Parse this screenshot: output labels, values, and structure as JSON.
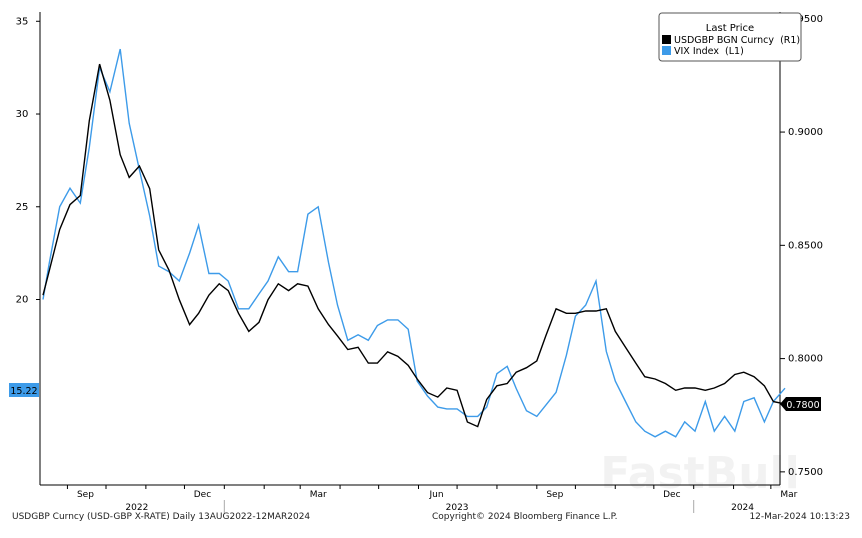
{
  "chart_data": {
    "type": "line",
    "legend": {
      "title": "Last Price",
      "placement": "top-right"
    },
    "x": [
      "2022-08-13",
      "2022-08-18",
      "2022-08-26",
      "2022-09-03",
      "2022-09-11",
      "2022-09-18",
      "2022-09-26",
      "2022-10-04",
      "2022-10-12",
      "2022-10-19",
      "2022-10-27",
      "2022-11-04",
      "2022-11-11",
      "2022-11-19",
      "2022-11-27",
      "2022-12-05",
      "2022-12-12",
      "2022-12-20",
      "2022-12-28",
      "2023-01-04",
      "2023-01-12",
      "2023-01-20",
      "2023-01-28",
      "2023-02-04",
      "2023-02-12",
      "2023-02-20",
      "2023-02-27",
      "2023-03-07",
      "2023-03-15",
      "2023-03-23",
      "2023-03-30",
      "2023-04-07",
      "2023-04-15",
      "2023-04-23",
      "2023-04-30",
      "2023-05-08",
      "2023-05-16",
      "2023-05-24",
      "2023-05-31",
      "2023-06-08",
      "2023-06-16",
      "2023-06-23",
      "2023-07-01",
      "2023-07-09",
      "2023-07-17",
      "2023-07-24",
      "2023-08-01",
      "2023-08-09",
      "2023-08-16",
      "2023-08-24",
      "2023-09-01",
      "2023-09-08",
      "2023-09-16",
      "2023-09-24",
      "2023-10-01",
      "2023-10-09",
      "2023-10-17",
      "2023-10-25",
      "2023-11-01",
      "2023-11-09",
      "2023-11-17",
      "2023-11-24",
      "2023-12-02",
      "2023-12-10",
      "2023-12-18",
      "2023-12-25",
      "2024-01-02",
      "2024-01-10",
      "2024-01-17",
      "2024-01-25",
      "2024-02-02",
      "2024-02-09",
      "2024-02-17",
      "2024-02-25",
      "2024-03-03",
      "2024-03-12"
    ],
    "series": [
      {
        "name": "USDGBP BGN Curncy  (R1)",
        "axis": "right",
        "color": "#000000",
        "last_value_label": "0.7800",
        "values": [
          0.828,
          0.839,
          0.857,
          0.868,
          0.872,
          0.905,
          0.93,
          0.914,
          0.89,
          0.88,
          0.885,
          0.875,
          0.848,
          0.839,
          0.826,
          0.815,
          0.82,
          0.828,
          0.833,
          0.83,
          0.82,
          0.812,
          0.816,
          0.826,
          0.833,
          0.83,
          0.833,
          0.832,
          0.822,
          0.815,
          0.81,
          0.804,
          0.805,
          0.798,
          0.798,
          0.803,
          0.801,
          0.797,
          0.791,
          0.785,
          0.783,
          0.787,
          0.786,
          0.772,
          0.77,
          0.782,
          0.788,
          0.789,
          0.794,
          0.796,
          0.799,
          0.81,
          0.822,
          0.82,
          0.82,
          0.821,
          0.821,
          0.822,
          0.812,
          0.805,
          0.798,
          0.792,
          0.791,
          0.789,
          0.786,
          0.787,
          0.787,
          0.786,
          0.787,
          0.789,
          0.793,
          0.794,
          0.792,
          0.788,
          0.781,
          0.78
        ]
      },
      {
        "name": "VIX Index  (L1)",
        "axis": "left",
        "color": "#3d9be9",
        "last_value_label": "15.22",
        "values": [
          20,
          22,
          25,
          26,
          25.2,
          28.2,
          32.5,
          31.2,
          33.5,
          29.5,
          27,
          24.5,
          21.8,
          21.5,
          21,
          22.5,
          24,
          21.4,
          21.4,
          21,
          19.5,
          19.5,
          20.3,
          21,
          22.3,
          21.5,
          21.5,
          24.6,
          25,
          22,
          19.7,
          17.8,
          18.1,
          17.8,
          18.6,
          18.9,
          18.9,
          18.4,
          15.6,
          14.8,
          14.2,
          14.1,
          14.1,
          13.7,
          13.7,
          14.2,
          16,
          16.4,
          15.2,
          14,
          13.7,
          14.3,
          15,
          17,
          19.1,
          19.7,
          21,
          17.2,
          15.6,
          14.5,
          13.4,
          12.9,
          12.6,
          12.9,
          12.6,
          13.4,
          12.9,
          14.5,
          12.9,
          13.7,
          12.9,
          14.5,
          14.7,
          13.4,
          14.5,
          15.22
        ]
      }
    ],
    "left_axis": {
      "ticks": [
        "35",
        "30",
        "25",
        "20"
      ],
      "tick_values": [
        35,
        30,
        25,
        20
      ],
      "ylim": [
        10,
        35.5
      ]
    },
    "right_axis": {
      "ticks": [
        "0.9500",
        "0.9000",
        "0.8500",
        "0.8000",
        "0.7500"
      ],
      "tick_values": [
        0.95,
        0.9,
        0.85,
        0.8,
        0.75
      ],
      "ylim": [
        0.7442,
        0.953
      ]
    },
    "x_ticks": [
      "Sep",
      "Dec",
      "Mar",
      "Jun",
      "Sep",
      "Dec",
      "Mar"
    ],
    "x_tick_dates": [
      "2022-09-15",
      "2022-12-15",
      "2023-03-15",
      "2023-06-15",
      "2023-09-15",
      "2023-12-15",
      "2024-03-15"
    ],
    "year_labels": [
      "2022",
      "2023",
      "2024"
    ],
    "grid": false
  },
  "footer": {
    "left": "USDGBP Curncy (USD-GBP X-RATE)  Daily 13AUG2022-12MAR2024",
    "center": "Copyright© 2024 Bloomberg Finance L.P.",
    "right": "12-Mar-2024 10:13:23"
  },
  "watermark": "FastBull"
}
